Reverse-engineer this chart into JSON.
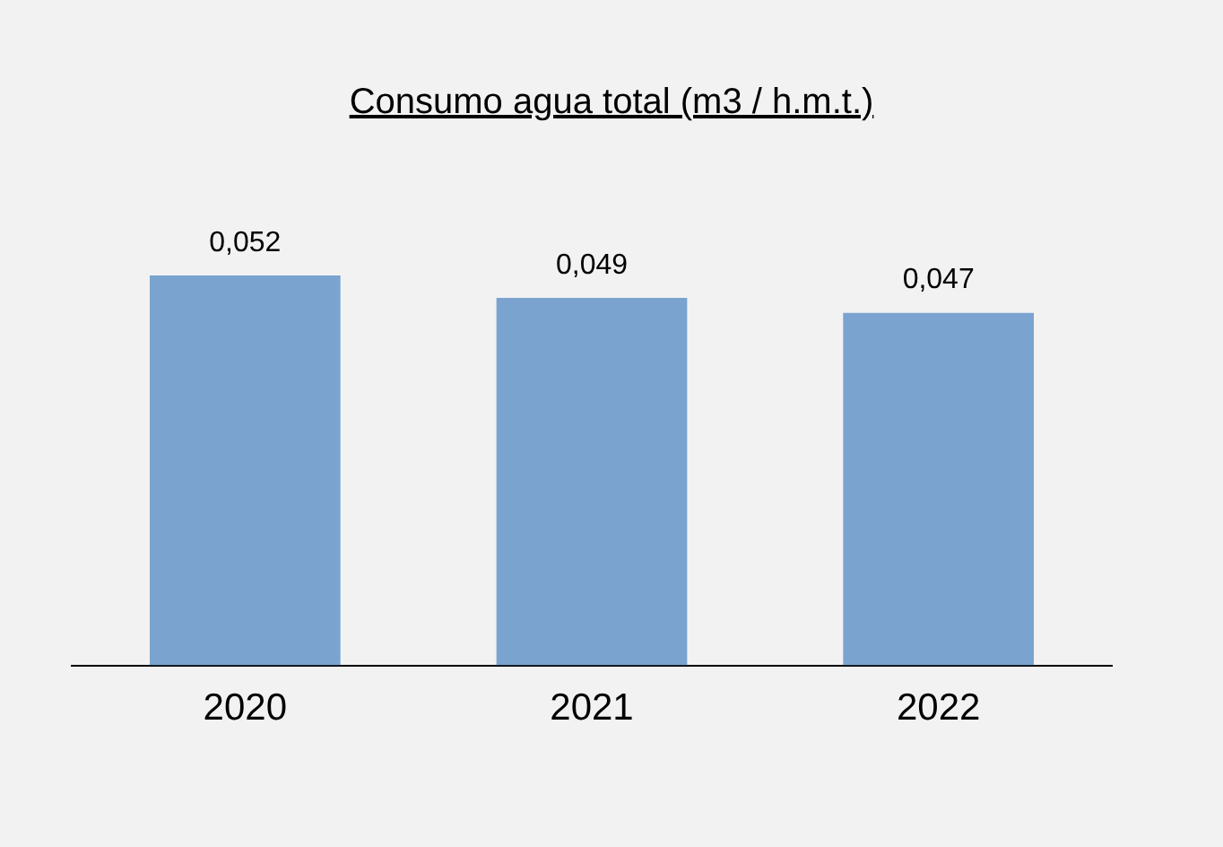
{
  "chart_data": {
    "type": "bar",
    "title": "Consumo agua total (m3 / h.m.t.)",
    "categories": [
      "2020",
      "2021",
      "2022"
    ],
    "values": [
      0.052,
      0.049,
      0.047
    ],
    "color": "#7aa3d0",
    "data_labels": true,
    "value_labels": [
      "0,052",
      "0,049",
      "0,047"
    ],
    "grid": false,
    "legend": false
  }
}
